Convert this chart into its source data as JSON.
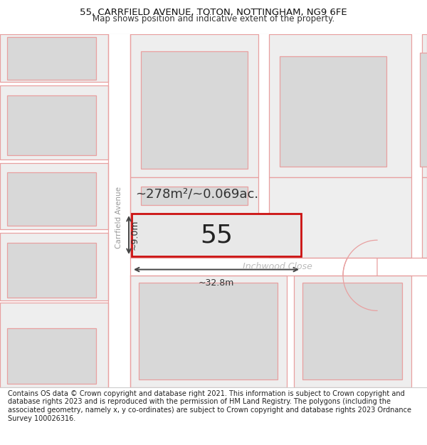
{
  "title_line1": "55, CARRFIELD AVENUE, TOTON, NOTTINGHAM, NG9 6FE",
  "title_line2": "Map shows position and indicative extent of the property.",
  "footer_text": "Contains OS data © Crown copyright and database right 2021. This information is subject to Crown copyright and database rights 2023 and is reproduced with the permission of HM Land Registry. The polygons (including the associated geometry, namely x, y co-ordinates) are subject to Crown copyright and database rights 2023 Ordnance Survey 100026316.",
  "street_label": "Carrfield Avenue",
  "street_label2": "Inchwood Close",
  "area_label": "~278m²/~0.069ac.",
  "width_label": "~32.8m",
  "height_label": "~9.0m",
  "number_label": "55",
  "map_bg": "#f0f0f0",
  "road_fill": "#ffffff",
  "plot_outline": "#e8a0a0",
  "highlight_color": "#cc1111",
  "building_fill": "#d8d8d8",
  "annotation_color": "#333333",
  "street_color": "#aaaaaa",
  "title_fontsize": 9.5,
  "subtitle_fontsize": 8.5,
  "footer_fontsize": 7.0,
  "number_fontsize": 26,
  "area_fontsize": 13,
  "dim_fontsize": 9
}
